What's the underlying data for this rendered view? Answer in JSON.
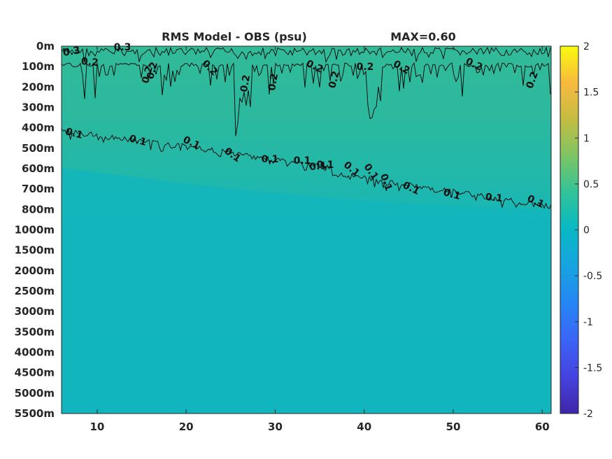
{
  "chart_data": {
    "type": "heatmap",
    "title": "RMS Model - OBS (psu)",
    "max_label": "MAX=0.60",
    "xlim": [
      6,
      61
    ],
    "x_ticks": [
      10,
      20,
      30,
      40,
      50,
      60
    ],
    "y_ticks": [
      "0m",
      "100m",
      "200m",
      "300m",
      "400m",
      "500m",
      "600m",
      "700m",
      "800m",
      "1000m",
      "1500m",
      "2000m",
      "2500m",
      "3000m",
      "3500m",
      "4000m",
      "4500m",
      "5000m",
      "5500m"
    ],
    "colorbar": {
      "range": [
        -2,
        2
      ],
      "ticks": [
        "2",
        "1.5",
        "1",
        "0.5",
        "0",
        "-0.5",
        "-1",
        "-1.5",
        "-2"
      ],
      "colormap": "parula"
    },
    "field": {
      "depth_bands": [
        {
          "depth": "0m",
          "value": 0.35
        },
        {
          "depth": "200m",
          "value": 0.25
        },
        {
          "depth": "400m",
          "value": 0.2
        },
        {
          "depth": "600m",
          "value": 0.12
        },
        {
          "depth": "1000m",
          "value": 0.05
        },
        {
          "depth": "5500m",
          "value": 0.0
        }
      ]
    },
    "contours": [
      {
        "level": 0.3,
        "labels": [
          "0.3",
          "0.3"
        ]
      },
      {
        "level": 0.2,
        "labels": [
          "0.2",
          "0.2",
          "0.2",
          "0.2",
          "0.2",
          "0.2",
          "0.2",
          "0.2",
          "0.2",
          "0.2",
          "0.2",
          "0.2"
        ]
      },
      {
        "level": 0.1,
        "labels": [
          "0.1",
          "0.1",
          "0.1",
          "0.1",
          "0.1",
          "0.1",
          "0.1",
          "0.1",
          "0.1",
          "0.1",
          "0.1",
          "0.1",
          "0.1",
          "0.1",
          "0.1"
        ]
      }
    ],
    "colors": {
      "background_top": "#2fb99a",
      "background_mid": "#22b8a8",
      "background_deep": "#12b5bf",
      "contour": "#000000",
      "axis": "#262626"
    }
  }
}
